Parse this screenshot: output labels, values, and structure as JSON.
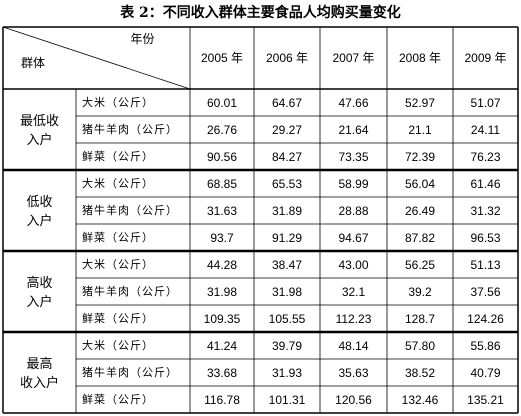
{
  "title": "表 2：不同收入群体主要食品人均购买量变化",
  "table": {
    "corner_top": "年份",
    "corner_bottom": "群体",
    "years": [
      "2005 年",
      "2006 年",
      "2007 年",
      "2008 年",
      "2009 年"
    ],
    "groups": [
      {
        "label_lines": [
          "最低收",
          "入户"
        ],
        "rows": [
          {
            "item": "大米（公斤）",
            "values": [
              "60.01",
              "64.67",
              "47.66",
              "52.97",
              "51.07"
            ]
          },
          {
            "item": "猪牛羊肉（公斤）",
            "values": [
              "26.76",
              "29.27",
              "21.64",
              "21.1",
              "24.11"
            ]
          },
          {
            "item": "鲜菜（公斤）",
            "values": [
              "90.56",
              "84.27",
              "73.35",
              "72.39",
              "76.23"
            ]
          }
        ]
      },
      {
        "label_lines": [
          "低收",
          "入户"
        ],
        "rows": [
          {
            "item": "大米（公斤）",
            "values": [
              "68.85",
              "65.53",
              "58.99",
              "56.04",
              "61.46"
            ]
          },
          {
            "item": "猪牛羊肉（公斤）",
            "values": [
              "31.63",
              "31.89",
              "28.88",
              "26.49",
              "31.32"
            ]
          },
          {
            "item": "鲜菜（公斤）",
            "values": [
              "93.7",
              "91.29",
              "94.67",
              "87.82",
              "96.53"
            ]
          }
        ]
      },
      {
        "label_lines": [
          "高收",
          "入户"
        ],
        "rows": [
          {
            "item": "大米（公斤）",
            "values": [
              "44.28",
              "38.47",
              "43.00",
              "56.25",
              "51.13"
            ]
          },
          {
            "item": "猪牛羊肉（公斤）",
            "values": [
              "31.98",
              "31.98",
              "32.1",
              "39.2",
              "37.56"
            ]
          },
          {
            "item": "鲜菜（公斤）",
            "values": [
              "109.35",
              "105.55",
              "112.23",
              "128.7",
              "124.26"
            ]
          }
        ]
      },
      {
        "label_lines": [
          "最高",
          "收入户"
        ],
        "rows": [
          {
            "item": "大米（公斤）",
            "values": [
              "41.24",
              "39.79",
              "48.14",
              "57.80",
              "55.86"
            ]
          },
          {
            "item": "猪牛羊肉（公斤）",
            "values": [
              "33.68",
              "31.93",
              "35.63",
              "38.52",
              "40.79"
            ]
          },
          {
            "item": "鲜菜（公斤）",
            "values": [
              "116.78",
              "101.31",
              "120.56",
              "132.46",
              "135.21"
            ]
          }
        ]
      }
    ]
  }
}
